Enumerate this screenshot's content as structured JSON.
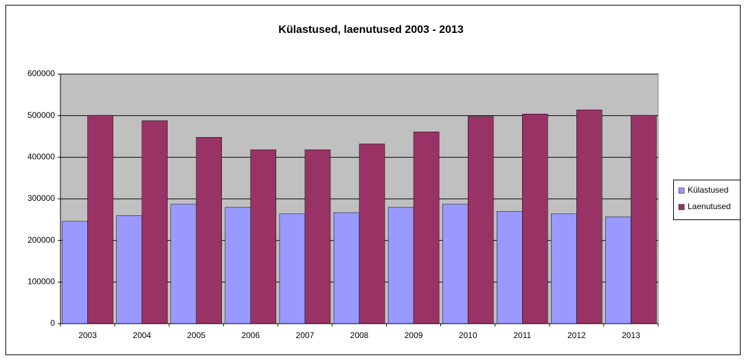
{
  "chart_data": {
    "type": "bar",
    "title": "Külastused, laenutused 2003 - 2013",
    "categories": [
      "2003",
      "2004",
      "2005",
      "2006",
      "2007",
      "2008",
      "2009",
      "2010",
      "2011",
      "2012",
      "2013"
    ],
    "series": [
      {
        "name": "Külastused",
        "color": "#9999ff",
        "values": [
          246000,
          260000,
          287000,
          280000,
          264000,
          267000,
          280000,
          287000,
          270000,
          264000,
          257000
        ]
      },
      {
        "name": "Laenutused",
        "color": "#993366",
        "values": [
          501000,
          488000,
          448000,
          418000,
          418000,
          432000,
          461000,
          498000,
          504000,
          514000,
          501000
        ]
      }
    ],
    "ylim": [
      0,
      600000
    ],
    "yticks": [
      0,
      100000,
      200000,
      300000,
      400000,
      500000,
      600000
    ],
    "grid": true,
    "legend": "right"
  }
}
